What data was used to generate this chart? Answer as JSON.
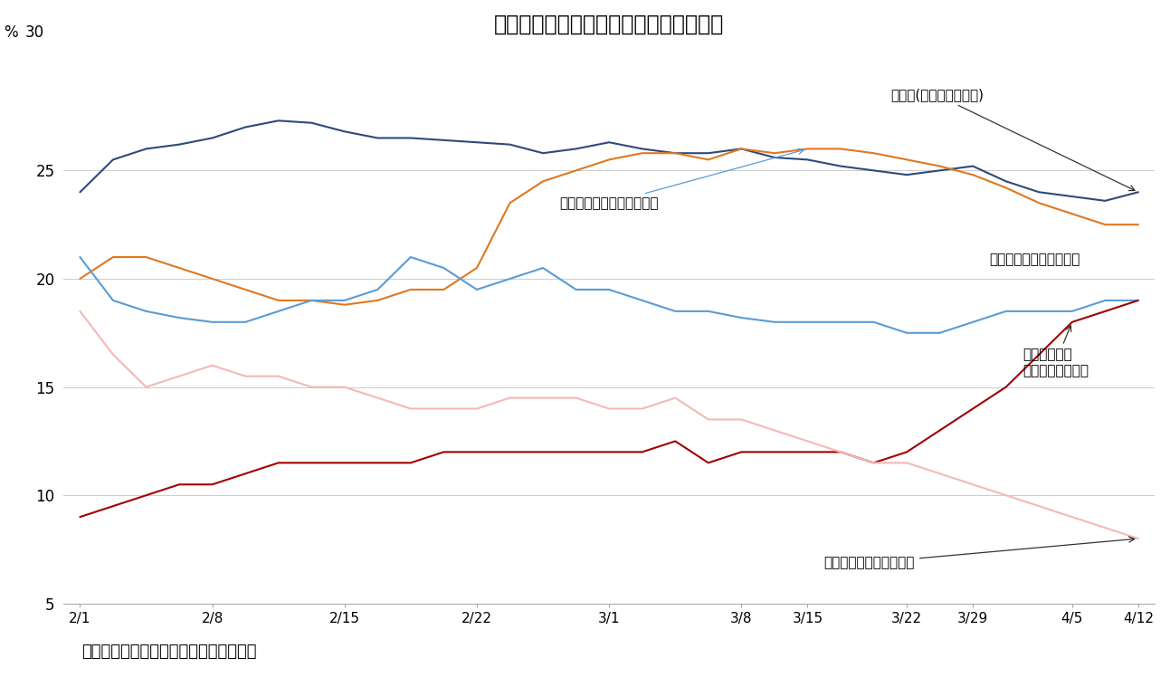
{
  "title": "第１回投票での支持率に関する世論調査",
  "source": "（資料）　Ｉｆｏｐ／ＦＩＤＵＣＩＡＬ",
  "ylim": [
    5,
    30
  ],
  "yticks": [
    5,
    10,
    15,
    20,
    25
  ],
  "xtick_labels": [
    "2/1",
    "2/8",
    "2/15",
    "2/22",
    "3/1",
    "3/8",
    "3/15",
    "3/22",
    "3/29",
    "4/5",
    "4/12"
  ],
  "background_color": "#ffffff",
  "lines": {
    "lepen": {
      "color": "#2E4A7A",
      "data": [
        24.0,
        25.5,
        26.0,
        26.2,
        26.5,
        27.0,
        27.3,
        27.2,
        26.8,
        26.5,
        26.5,
        26.4,
        26.3,
        26.2,
        25.8,
        26.0,
        26.3,
        26.0,
        25.8,
        25.8,
        26.0,
        25.6,
        25.5,
        25.2,
        25.0,
        24.8,
        25.0,
        25.2,
        24.5,
        24.0,
        23.8,
        23.6,
        24.0
      ]
    },
    "fillon": {
      "color": "#E07820",
      "data": [
        20.0,
        21.0,
        21.0,
        20.5,
        20.0,
        19.5,
        19.0,
        19.0,
        18.8,
        19.0,
        19.5,
        19.5,
        20.5,
        23.5,
        24.5,
        25.0,
        25.5,
        25.8,
        25.8,
        25.5,
        26.0,
        25.8,
        26.0,
        26.0,
        25.8,
        25.5,
        25.2,
        24.8,
        24.2,
        23.5,
        23.0,
        22.5,
        22.5
      ]
    },
    "macron": {
      "color": "#5B9BD5",
      "data": [
        21.0,
        19.0,
        18.5,
        18.2,
        18.0,
        18.0,
        18.5,
        19.0,
        19.0,
        19.5,
        21.0,
        20.5,
        19.5,
        20.0,
        20.5,
        19.5,
        19.5,
        19.0,
        18.5,
        18.5,
        18.2,
        18.0,
        18.0,
        18.0,
        18.0,
        17.5,
        17.5,
        18.0,
        18.5,
        18.5,
        18.5,
        19.0,
        19.0
      ]
    },
    "melenchon": {
      "color": "#A00000",
      "data": [
        9.0,
        9.5,
        10.0,
        10.5,
        10.5,
        11.0,
        11.5,
        11.5,
        11.5,
        11.5,
        11.5,
        12.0,
        12.0,
        12.0,
        12.0,
        12.0,
        12.0,
        12.0,
        12.5,
        11.5,
        12.0,
        12.0,
        12.0,
        12.0,
        11.5,
        12.0,
        13.0,
        14.0,
        15.0,
        16.5,
        18.0,
        18.5,
        19.0
      ]
    },
    "hamon": {
      "color": "#F4B8B8",
      "data": [
        18.5,
        16.5,
        15.0,
        15.5,
        16.0,
        15.5,
        15.5,
        15.0,
        15.0,
        14.5,
        14.0,
        14.0,
        14.0,
        14.5,
        14.5,
        14.5,
        14.0,
        14.0,
        14.5,
        13.5,
        13.5,
        13.0,
        12.5,
        12.0,
        11.5,
        11.5,
        11.0,
        10.5,
        10.0,
        9.5,
        9.0,
        8.5,
        8.0
      ]
    }
  },
  "xtick_positions": [
    0,
    4,
    8,
    12,
    16,
    20,
    22,
    25,
    27,
    30,
    32
  ]
}
